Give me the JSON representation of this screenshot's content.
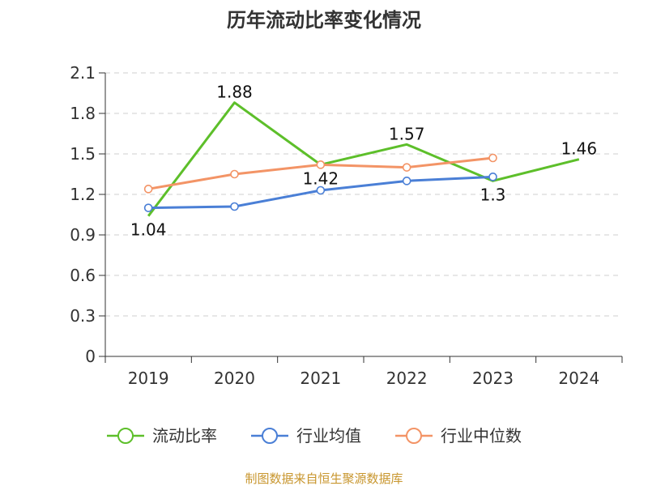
{
  "chart_data": {
    "type": "line",
    "title": "历年流动比率变化情况",
    "categories": [
      "2019",
      "2020",
      "2021",
      "2022",
      "2023",
      "2024"
    ],
    "ylim": [
      0,
      2.1
    ],
    "yticks": [
      "0",
      "0.3",
      "0.6",
      "0.9",
      "1.2",
      "1.5",
      "1.8",
      "2.1"
    ],
    "grid": true,
    "series": [
      {
        "name": "流动比率",
        "color": "#5dbf2a",
        "values": [
          1.04,
          1.88,
          1.42,
          1.57,
          1.3,
          1.46
        ],
        "labels": [
          "1.04",
          "1.88",
          "1.42",
          "1.57",
          "1.3",
          "1.46"
        ],
        "show_markers": false
      },
      {
        "name": "行业均值",
        "color": "#4a7fd6",
        "values": [
          1.1,
          1.11,
          1.23,
          1.3,
          1.33,
          null
        ],
        "show_markers": true
      },
      {
        "name": "行业中位数",
        "color": "#f39466",
        "values": [
          1.24,
          1.35,
          1.42,
          1.4,
          1.47,
          null
        ],
        "show_markers": true
      }
    ],
    "legend_position": "bottom",
    "source": "制图数据来自恒生聚源数据库"
  }
}
